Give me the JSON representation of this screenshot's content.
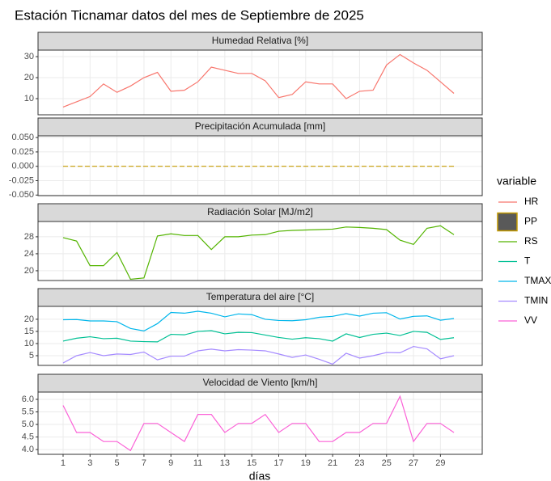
{
  "title": "Estación Ticnamar datos del mes de Septiembre de 2025",
  "xlabel": "días",
  "legend": {
    "title": "variable",
    "items": [
      {
        "name": "HR",
        "color": "#F8766D",
        "key": "line"
      },
      {
        "name": "PP",
        "color": "#C49A00",
        "key": "box"
      },
      {
        "name": "RS",
        "color": "#53B400",
        "key": "line"
      },
      {
        "name": "T",
        "color": "#00C094",
        "key": "line"
      },
      {
        "name": "TMAX",
        "color": "#00B6EB",
        "key": "line"
      },
      {
        "name": "TMIN",
        "color": "#A58AFF",
        "key": "line"
      },
      {
        "name": "VV",
        "color": "#FB61D7",
        "key": "line"
      }
    ]
  },
  "chart_data": [
    {
      "type": "line",
      "title": "Humedad Relativa [%]",
      "x": [
        1,
        2,
        3,
        4,
        5,
        6,
        7,
        8,
        9,
        10,
        11,
        12,
        13,
        14,
        15,
        16,
        17,
        18,
        19,
        20,
        21,
        22,
        23,
        24,
        25,
        26,
        27,
        28,
        29,
        30
      ],
      "series": [
        {
          "name": "HR",
          "color": "#F8766D",
          "values": [
            6,
            8.5,
            11,
            17,
            13,
            16,
            20,
            22.5,
            13.5,
            14,
            18,
            25,
            23.5,
            22,
            22,
            18.5,
            10.5,
            12,
            18,
            17,
            17,
            10,
            13.5,
            14,
            26,
            31,
            27,
            23.5,
            18,
            12.5
          ]
        }
      ],
      "xlim": [
        -0.86,
        32.1
      ],
      "xticks": [
        1,
        3,
        5,
        7,
        9,
        11,
        13,
        15,
        17,
        19,
        21,
        23,
        25,
        27,
        29
      ],
      "ylim": [
        2.3,
        33.1
      ],
      "yticks": [
        10,
        20,
        30
      ]
    },
    {
      "type": "line",
      "title": "Precipitación Acumulada [mm]",
      "x": [
        1,
        2,
        3,
        4,
        5,
        6,
        7,
        8,
        9,
        10,
        11,
        12,
        13,
        14,
        15,
        16,
        17,
        18,
        19,
        20,
        21,
        22,
        23,
        24,
        25,
        26,
        27,
        28,
        29,
        30
      ],
      "series": [
        {
          "name": "PP",
          "color": "#C49A00",
          "linetype": "dashed",
          "values": [
            0,
            0,
            0,
            0,
            0,
            0,
            0,
            0,
            0,
            0,
            0,
            0,
            0,
            0,
            0,
            0,
            0,
            0,
            0,
            0,
            0,
            0,
            0,
            0,
            0,
            0,
            0,
            0,
            0,
            0
          ]
        }
      ],
      "xlim": [
        -0.86,
        32.1
      ],
      "xticks": [
        1,
        3,
        5,
        7,
        9,
        11,
        13,
        15,
        17,
        19,
        21,
        23,
        25,
        27,
        29
      ],
      "ylim": [
        -0.051,
        0.053
      ],
      "yticks": [
        {
          "value": -0.05,
          "label": "-0.050"
        },
        {
          "value": -0.025,
          "label": "-0.025"
        },
        {
          "value": 0,
          "label": "0.000"
        },
        {
          "value": 0.025,
          "label": "0.025"
        },
        {
          "value": 0.05,
          "label": "0.050"
        }
      ]
    },
    {
      "type": "line",
      "title": "Radiación Solar [MJ/m2]",
      "x": [
        1,
        2,
        3,
        4,
        5,
        6,
        7,
        8,
        9,
        10,
        11,
        12,
        13,
        14,
        15,
        16,
        17,
        18,
        19,
        20,
        21,
        22,
        23,
        24,
        25,
        26,
        27,
        28,
        29,
        30
      ],
      "series": [
        {
          "name": "RS",
          "color": "#53B400",
          "values": [
            27.8,
            27,
            21.2,
            21.2,
            24.3,
            18,
            18.3,
            28.2,
            28.7,
            28.3,
            28.3,
            25,
            28,
            28,
            28.4,
            28.5,
            29.3,
            29.5,
            29.6,
            29.7,
            29.8,
            30.3,
            30.2,
            30,
            29.7,
            27.2,
            26.2,
            30,
            30.6,
            28.5
          ]
        }
      ],
      "xlim": [
        -0.86,
        32.1
      ],
      "xticks": [
        1,
        3,
        5,
        7,
        9,
        11,
        13,
        15,
        17,
        19,
        21,
        23,
        25,
        27,
        29
      ],
      "ylim": [
        17.7,
        31.6
      ],
      "yticks": [
        20,
        24,
        28
      ]
    },
    {
      "type": "line",
      "title": "Temperatura del aire [°C]",
      "x": [
        1,
        2,
        3,
        4,
        5,
        6,
        7,
        8,
        9,
        10,
        11,
        12,
        13,
        14,
        15,
        16,
        17,
        18,
        19,
        20,
        21,
        22,
        23,
        24,
        25,
        26,
        27,
        28,
        29,
        30
      ],
      "series": [
        {
          "name": "T",
          "color": "#00C094",
          "values": [
            11,
            12.2,
            12.8,
            12,
            12.2,
            11,
            10.8,
            10.7,
            13.8,
            13.6,
            15,
            15.3,
            14,
            14.6,
            14.5,
            13.5,
            12.5,
            11.8,
            12.4,
            12,
            11,
            14,
            12.5,
            13.8,
            14.3,
            13.3,
            15,
            14.6,
            11.7,
            12.4
          ]
        },
        {
          "name": "TMAX",
          "color": "#00B6EB",
          "values": [
            19.8,
            19.9,
            19.3,
            19.3,
            19,
            16.2,
            15.2,
            18.2,
            22.8,
            22.5,
            23.3,
            22.5,
            21,
            22.2,
            21.9,
            20,
            19.5,
            19.4,
            19.8,
            20.8,
            21.2,
            22.3,
            21.3,
            22.5,
            22.7,
            20.1,
            21.2,
            21.4,
            19.6,
            20.3
          ]
        },
        {
          "name": "TMIN",
          "color": "#A58AFF",
          "values": [
            2,
            5,
            6.3,
            5,
            5.7,
            5.5,
            6.5,
            3.3,
            4.8,
            4.8,
            7,
            7.7,
            7,
            7.5,
            7.3,
            7,
            5.7,
            4.3,
            5.3,
            3.5,
            1.5,
            6,
            4,
            5,
            6.3,
            6.2,
            8.8,
            7.8,
            3.7,
            5
          ]
        }
      ],
      "xlim": [
        -0.86,
        32.1
      ],
      "xticks": [
        1,
        3,
        5,
        7,
        9,
        11,
        13,
        15,
        17,
        19,
        21,
        23,
        25,
        27,
        29
      ],
      "ylim": [
        1,
        25.3
      ],
      "yticks": [
        5,
        10,
        15,
        20
      ]
    },
    {
      "type": "line",
      "title": "Velocidad de Viento [km/h]",
      "x": [
        1,
        2,
        3,
        4,
        5,
        6,
        7,
        8,
        9,
        10,
        11,
        12,
        13,
        14,
        15,
        16,
        17,
        18,
        19,
        20,
        21,
        22,
        23,
        24,
        25,
        26,
        27,
        28,
        29,
        30
      ],
      "series": [
        {
          "name": "VV",
          "color": "#FB61D7",
          "values": [
            5.76,
            4.68,
            4.68,
            4.32,
            4.32,
            3.96,
            5.04,
            5.04,
            4.68,
            4.32,
            5.4,
            5.4,
            4.68,
            5.04,
            5.04,
            5.4,
            4.68,
            5.04,
            5.04,
            4.32,
            4.32,
            4.68,
            4.68,
            5.04,
            5.04,
            6.12,
            4.32,
            5.04,
            5.04,
            4.68
          ]
        }
      ],
      "xlim": [
        -0.86,
        32.1
      ],
      "xticks": [
        1,
        3,
        5,
        7,
        9,
        11,
        13,
        15,
        17,
        19,
        21,
        23,
        25,
        27,
        29
      ],
      "ylim": [
        3.81,
        6.29
      ],
      "yticks": [
        {
          "value": 4,
          "label": "4.0"
        },
        {
          "value": 4.5,
          "label": "4.5"
        },
        {
          "value": 5,
          "label": "5.0"
        },
        {
          "value": 5.5,
          "label": "5.5"
        },
        {
          "value": 6,
          "label": "6.0"
        }
      ]
    }
  ]
}
